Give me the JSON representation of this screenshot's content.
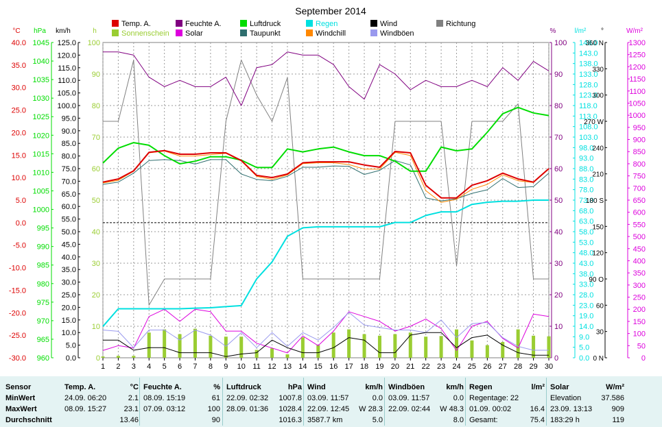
{
  "title": "September 2014",
  "colors": {
    "temp": "#dd0000",
    "feuchte": "#800080",
    "luftdruck": "#00dd00",
    "regen": "#00e0e0",
    "wind": "#000000",
    "richtung": "#808080",
    "sonne": "#9acd32",
    "solar": "#dd00dd",
    "taupunkt": "#2f6f6f",
    "windchill": "#ff8800",
    "windboeen": "#9999ee"
  },
  "legend": [
    {
      "key": "temp",
      "label": "Temp. A."
    },
    {
      "key": "feuchte",
      "label": "Feuchte A."
    },
    {
      "key": "luftdruck",
      "label": "Luftdruck"
    },
    {
      "key": "regen",
      "label": "Regen"
    },
    {
      "key": "wind",
      "label": "Wind"
    },
    {
      "key": "richtung",
      "label": "Richtung"
    },
    {
      "key": "sonne",
      "label": "Sonnenschein"
    },
    {
      "key": "solar",
      "label": "Solar"
    },
    {
      "key": "taupunkt",
      "label": "Taupunkt"
    },
    {
      "key": "windchill",
      "label": "Windchill"
    },
    {
      "key": "windboeen",
      "label": "Windböen"
    }
  ],
  "axes": {
    "temp": {
      "unit": "°C",
      "ticks": [
        "40.0",
        "35.0",
        "30.0",
        "25.0",
        "20.0",
        "15.0",
        "10.0",
        "5.0",
        "0.0",
        "-5.0",
        "-10.0",
        "-15.0",
        "-20.0",
        "-25.0",
        "-30.0"
      ]
    },
    "pressure": {
      "unit": "hPa",
      "ticks": [
        "1045",
        "1040",
        "1035",
        "1030",
        "1025",
        "1020",
        "1015",
        "1010",
        "1005",
        "1000",
        "995",
        "990",
        "985",
        "980",
        "975",
        "970",
        "965",
        "960"
      ]
    },
    "wind": {
      "unit": "km/h",
      "ticks": [
        "125.0",
        "120.0",
        "115.0",
        "110.0",
        "105.0",
        "100.0",
        "95.0",
        "90.0",
        "85.0",
        "80.0",
        "75.0",
        "70.0",
        "65.0",
        "60.0",
        "55.0",
        "50.0",
        "45.0",
        "40.0",
        "35.0",
        "30.0",
        "25.0",
        "20.0",
        "15.0",
        "10.0",
        "5.0",
        "0.0"
      ]
    },
    "sun": {
      "unit": "h",
      "ticks": [
        "100",
        "90",
        "80",
        "70",
        "60",
        "50",
        "40",
        "30",
        "20",
        "10",
        "0"
      ]
    },
    "humidity": {
      "unit": "%",
      "ticks": [
        "100",
        "90",
        "80",
        "70",
        "60",
        "50",
        "40",
        "30",
        "20",
        "10",
        "0"
      ]
    },
    "rain": {
      "unit": "l/m²",
      "ticks": [
        "148.0",
        "143.0",
        "138.0",
        "133.0",
        "128.0",
        "123.0",
        "118.0",
        "113.0",
        "108.0",
        "103.0",
        "98.0",
        "93.0",
        "88.0",
        "83.0",
        "78.0",
        "73.0",
        "68.0",
        "63.0",
        "58.0",
        "53.0",
        "48.0",
        "43.0",
        "38.0",
        "33.0",
        "28.0",
        "23.0",
        "19.0",
        "14.0",
        "9.0",
        "5.0",
        "0.0"
      ]
    },
    "direction": {
      "unit": "°",
      "ticks": [
        "360 N",
        "330",
        "300",
        "270 W",
        "240",
        "210",
        "180 S",
        "150",
        "120",
        "90 O",
        "60",
        "30",
        "0 N"
      ]
    },
    "solar": {
      "unit": "W/m²",
      "ticks": [
        "1300",
        "1250",
        "1200",
        "1150",
        "1100",
        "1050",
        "1000",
        "950",
        "900",
        "850",
        "800",
        "750",
        "700",
        "650",
        "600",
        "550",
        "500",
        "450",
        "400",
        "350",
        "300",
        "250",
        "200",
        "150",
        "100",
        "50",
        "0"
      ]
    }
  },
  "chart_data": {
    "type": "line",
    "title": "September 2014",
    "x": [
      1,
      2,
      3,
      4,
      5,
      6,
      7,
      8,
      9,
      10,
      11,
      12,
      13,
      14,
      15,
      16,
      17,
      18,
      19,
      20,
      21,
      22,
      23,
      24,
      25,
      26,
      27,
      28,
      29,
      30
    ],
    "xlim": [
      1,
      30
    ],
    "series": [
      {
        "name": "Temp. A.",
        "axis": "temp",
        "unit": "°C",
        "values": [
          9.0,
          9.7,
          11.5,
          15.6,
          16.0,
          15.2,
          15.2,
          15.5,
          15.5,
          13.8,
          10.5,
          10.0,
          10.8,
          13.3,
          13.5,
          13.5,
          13.5,
          12.8,
          12.3,
          15.8,
          15.5,
          8.3,
          5.5,
          5.5,
          8.3,
          9.3,
          11.0,
          9.7,
          9.0,
          12.0
        ]
      },
      {
        "name": "Feuchte A.",
        "axis": "humidity",
        "unit": "%",
        "values": [
          97,
          97,
          96,
          89,
          86,
          88,
          86,
          86,
          89,
          80,
          92,
          93,
          97,
          96,
          96,
          93,
          86,
          82,
          93,
          90,
          85,
          88,
          86,
          86,
          88,
          86,
          92,
          88,
          94,
          91
        ]
      },
      {
        "name": "Luftdruck",
        "axis": "pressure",
        "unit": "hPa",
        "values": [
          1012.5,
          1016.5,
          1018.0,
          1017.3,
          1014.5,
          1012.3,
          1013.0,
          1014.2,
          1014.2,
          1013.3,
          1011.3,
          1011.3,
          1016.3,
          1015.5,
          1016.3,
          1016.8,
          1015.5,
          1014.5,
          1014.5,
          1013.0,
          1010.3,
          1010.3,
          1016.8,
          1015.8,
          1016.3,
          1020.8,
          1025.8,
          1027.5,
          1026.0,
          1025.3
        ]
      },
      {
        "name": "Regen",
        "axis": "rain",
        "unit": "l/m²",
        "values": [
          14.7,
          23.0,
          23.0,
          23.0,
          23.0,
          23.0,
          23.3,
          23.5,
          24.0,
          24.5,
          37.0,
          45.0,
          57.0,
          61.0,
          61.5,
          61.5,
          61.5,
          61.5,
          61.5,
          63.5,
          63.5,
          66.8,
          68.5,
          68.5,
          72.0,
          73.0,
          73.5,
          73.5,
          74.0,
          74.0
        ]
      },
      {
        "name": "Wind",
        "axis": "wind",
        "unit": "km/h",
        "values": [
          7.0,
          7.0,
          3.0,
          4.0,
          4.0,
          2.0,
          2.0,
          2.0,
          0.5,
          1.5,
          2.0,
          7.0,
          4.0,
          2.0,
          2.0,
          4.0,
          8.0,
          7.0,
          2.0,
          2.0,
          9.0,
          10.0,
          10.0,
          4.0,
          8.0,
          9.0,
          5.0,
          2.0,
          1.0,
          1.0
        ]
      },
      {
        "name": "Windböen",
        "axis": "wind",
        "unit": "km/h",
        "values": [
          11.0,
          10.5,
          4.0,
          11.0,
          11.0,
          7.0,
          11.0,
          9.0,
          4.5,
          10.0,
          4.0,
          10.0,
          4.5,
          10.0,
          7.0,
          12.0,
          18.0,
          13.0,
          12.0,
          11.0,
          11.0,
          10.0,
          15.0,
          8.0,
          13.5,
          14.0,
          8.0,
          4.5,
          3.0,
          3.0
        ]
      },
      {
        "name": "Richtung",
        "axis": "direction",
        "unit": "°",
        "values": [
          270,
          270,
          340,
          60,
          90,
          90,
          90,
          90,
          270,
          340,
          300,
          270,
          320,
          90,
          90,
          90,
          90,
          90,
          90,
          270,
          270,
          270,
          270,
          105,
          270,
          270,
          270,
          290,
          90,
          90
        ]
      },
      {
        "name": "Solar",
        "axis": "solar",
        "unit": "W/m²",
        "values": [
          30,
          50,
          40,
          170,
          200,
          150,
          200,
          190,
          110,
          110,
          60,
          40,
          20,
          90,
          50,
          110,
          190,
          170,
          150,
          110,
          130,
          160,
          120,
          30,
          130,
          150,
          80,
          40,
          180,
          170
        ]
      },
      {
        "name": "Taupunkt",
        "axis": "temp",
        "unit": "°C",
        "values": [
          8.5,
          9.0,
          11.0,
          13.8,
          14.0,
          13.8,
          13.0,
          14.0,
          14.0,
          10.8,
          9.6,
          9.3,
          10.3,
          12.3,
          12.3,
          12.6,
          12.5,
          10.7,
          11.6,
          13.8,
          12.8,
          5.5,
          4.8,
          5.3,
          6.5,
          7.3,
          9.8,
          7.8,
          8.0,
          11.0
        ]
      },
      {
        "name": "Windchill",
        "axis": "temp",
        "unit": "°C",
        "values": [
          8.8,
          9.4,
          11.4,
          15.5,
          15.9,
          14.8,
          14.8,
          15.1,
          15.4,
          13.7,
          10.3,
          9.6,
          10.6,
          13.1,
          13.3,
          13.3,
          12.9,
          11.9,
          11.9,
          15.6,
          14.9,
          7.1,
          4.5,
          5.2,
          7.4,
          8.5,
          10.6,
          9.3,
          8.9,
          11.9
        ]
      },
      {
        "name": "Sonnenschein",
        "axis": "sun",
        "unit": "h",
        "values": [
          0.4,
          0.6,
          0.6,
          8.0,
          9.0,
          7.5,
          9.2,
          7.0,
          6.7,
          6.7,
          2.5,
          3.0,
          1.1,
          6.5,
          4.0,
          8.0,
          9.0,
          7.5,
          7.0,
          7.5,
          8.0,
          6.7,
          6.9,
          9.0,
          5.5,
          4.0,
          5.0,
          9.0,
          7.0,
          6.8
        ]
      }
    ],
    "ylim": {
      "temp": [
        -30,
        40
      ],
      "pressure": [
        960,
        1045
      ],
      "wind": [
        0,
        125
      ],
      "humidity": [
        0,
        100
      ],
      "sun": [
        0,
        100
      ],
      "rain": [
        0,
        148
      ],
      "direction": [
        0,
        360
      ],
      "solar": [
        0,
        1300
      ]
    },
    "reference_line": {
      "axis": "temp",
      "value": 0
    },
    "grid": true,
    "legend_position": "top"
  },
  "stats": {
    "row_labels": {
      "sensor": "Sensor",
      "min": "MinWert",
      "max": "MaxWert",
      "avg": "Durchschnitt"
    },
    "columns": [
      {
        "name": "Temp. A.",
        "unit": "°C",
        "min_time": "24.09.  06:20",
        "min_val": "2.1",
        "max_time": "08.09.  15:27",
        "max_val": "23.1",
        "avg_val": "13.46"
      },
      {
        "name": "Feuchte A.",
        "unit": "%",
        "min_time": "08.09.  15:19",
        "min_val": "61",
        "max_time": "07.09.  03:12",
        "max_val": "100",
        "avg_val": "90"
      },
      {
        "name": "Luftdruck",
        "unit": "hPa",
        "min_time": "22.09.  02:32",
        "min_val": "1007.8",
        "max_time": "28.09.  01:36",
        "max_val": "1028.4",
        "avg_val": "1016.3"
      },
      {
        "name": "Wind",
        "unit": "km/h",
        "min_time": "03.09.  11:57",
        "min_val": "0.0",
        "max_time": "22.09.  12:45",
        "max_val": "W 28.3",
        "avg_time": "3587.7 km",
        "avg_val": "5.0"
      },
      {
        "name": "Windböen",
        "unit": "km/h",
        "min_time": "03.09.  11:57",
        "min_val": "0.0",
        "max_time": "22.09.  02:44",
        "max_val": "W 48.3",
        "avg_val": "8.0"
      },
      {
        "name": "Regen",
        "unit": "l/m²",
        "min_time": "Regentage: 22",
        "min_val": "",
        "max_time": "01.09.  00:02",
        "max_val": "16.4",
        "avg_time": "Gesamt:",
        "avg_val": "75.4"
      },
      {
        "name": "Solar",
        "unit": "W/m²",
        "min_time": "Elevation",
        "min_val": "37.586",
        "max_time": "23.09.  13:13",
        "max_val": "909",
        "avg_time": "183:29 h",
        "avg_val": "119"
      }
    ]
  }
}
